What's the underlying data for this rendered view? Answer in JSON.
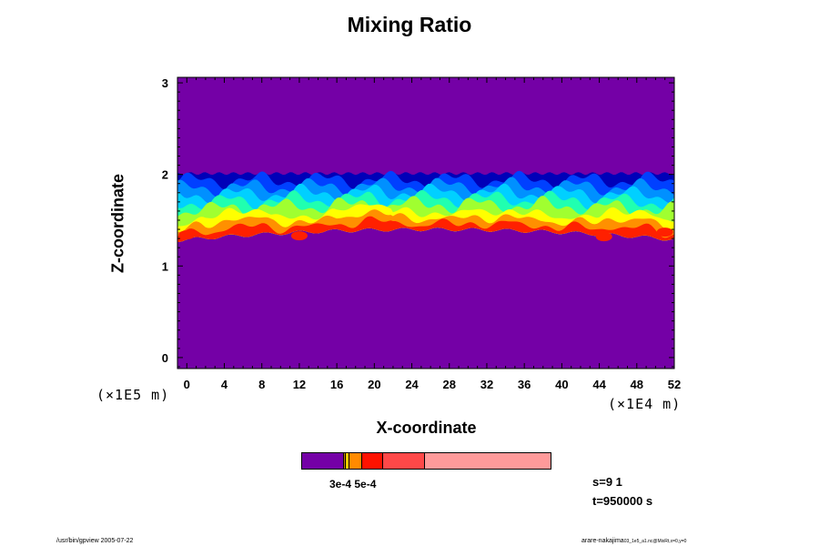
{
  "chart_data": {
    "type": "heatmap",
    "title": "Mixing Ratio",
    "xlabel": "X-coordinate",
    "ylabel": "Z-coordinate",
    "x_unit_label": "(×1E4 m)",
    "y_unit_label": "(×1E5 m)",
    "xlim": [
      -1,
      52
    ],
    "ylim": [
      -0.12,
      3.06
    ],
    "xticks": [
      0,
      4,
      8,
      12,
      16,
      20,
      24,
      28,
      32,
      36,
      40,
      44,
      48,
      52
    ],
    "yticks": [
      0,
      1,
      2,
      3
    ],
    "background_color": "#7400a6",
    "colorbar": {
      "levels": [
        "#7400a6",
        "#cc8800",
        "#ffcc00",
        "#ff8a00",
        "#ff1200",
        "#ff4848",
        "#ff9a9a"
      ],
      "label": "3e-4 5e-4"
    },
    "layer": {
      "top_z": 2.01,
      "band_colors": [
        "#0000b8",
        "#0040ff",
        "#0090ff",
        "#00d0ff",
        "#20ffb0",
        "#a0ff30",
        "#ffff00",
        "#ff9000",
        "#ff2000"
      ]
    }
  },
  "annotation": {
    "s_value": "s=9 1",
    "t_value": "t=950000 s"
  },
  "footer": {
    "left": "/usr/bin/gpview 2005-07-22",
    "right_main": "arare-nakajima",
    "right_small": "03_1e5_a1.nc@MixRt,x=0,y=0"
  }
}
